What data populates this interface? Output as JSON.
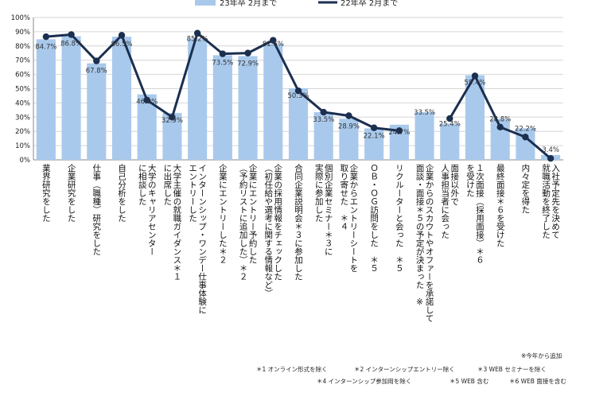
{
  "chart_data": {
    "type": "bar+line",
    "series": [
      {
        "name": "23年卒 2月まで",
        "kind": "bar",
        "color": "#a9c9ec",
        "values": [
          84.7,
          86.8,
          67.8,
          86.5,
          46.0,
          32.9,
          85.2,
          73.5,
          72.9,
          81.6,
          50.3,
          33.5,
          28.9,
          22.1,
          24.7,
          33.5,
          25.4,
          59.4,
          28.8,
          22.2,
          3.4
        ]
      },
      {
        "name": "22年卒 2月まで",
        "kind": "line",
        "color": "#1b2f4f",
        "values": [
          86.5,
          88.0,
          69.5,
          87.5,
          42.0,
          30.0,
          89.0,
          74.5,
          75.0,
          84.0,
          48.5,
          33.5,
          31.0,
          22.5,
          20.5,
          null,
          29.0,
          59.0,
          23.0,
          16.0,
          1.0
        ]
      }
    ],
    "bar_labels": [
      "84.7%",
      "86.8%",
      "67.8%",
      "86.5%",
      "46.0%",
      "32.9%",
      "85.2%",
      "73.5%",
      "72.9%",
      "81.6%",
      "50.3%",
      "33.5%",
      "28.9%",
      "22.1%",
      "24.7%",
      "33.5%",
      "25.4%",
      "59.4%",
      "28.8%",
      "22.2%",
      "3.4%"
    ],
    "categories": [
      "業界研究をした",
      "企業研究をした",
      "仕事（職種）研究をした",
      "自己分析をした",
      "大学のキャリアセンター\nに相談した",
      "大学主催の就職ガイダンス＊１\nに出席した",
      "インターンシップ・ワンデー仕事体験に\nエントリーした",
      "企業にエントリーした＊２",
      "企業にエントリー予約した\n（予約リストに追加した）＊２",
      "企業の採用情報をチェックした\n（初任給や選考に関する情報など）",
      "合同企業説明会＊３に参加した",
      "個別企業セミナー＊３に\n実際に参加した",
      "企業からエントリーシートを\n取り寄せた　＊４",
      "ＯＢ・ＯＧ訪問をした　＊５",
      "リクルーターと会った　＊５",
      "企業からのスカウトやオファーを承諾して\n面談・面接＊５の予定が決まった　※",
      "面接以外で\n人事担当者に会った",
      "１次面接（採用面接）＊６\nを受けた",
      "最終面接＊６を受けた",
      "内々定を得た",
      "入社予定先を決めて\n就職活動を終了した"
    ],
    "y_ticks": [
      "0%",
      "10%",
      "20%",
      "30%",
      "40%",
      "50%",
      "60%",
      "70%",
      "80%",
      "90%",
      "100%"
    ],
    "ylim": [
      0,
      100
    ],
    "legend_position": "top-center",
    "notes": {
      "new_item": "※今年から追加",
      "row1": [
        "＊1 オンライン形式を除く",
        "＊2 インターンシップエントリー除く",
        "＊3 WEB セミナーを除く"
      ],
      "row2": [
        "＊4 インターンシップ参加用を除く",
        "＊5 WEB 含む",
        "＊6 WEB 面接を含む"
      ]
    }
  }
}
